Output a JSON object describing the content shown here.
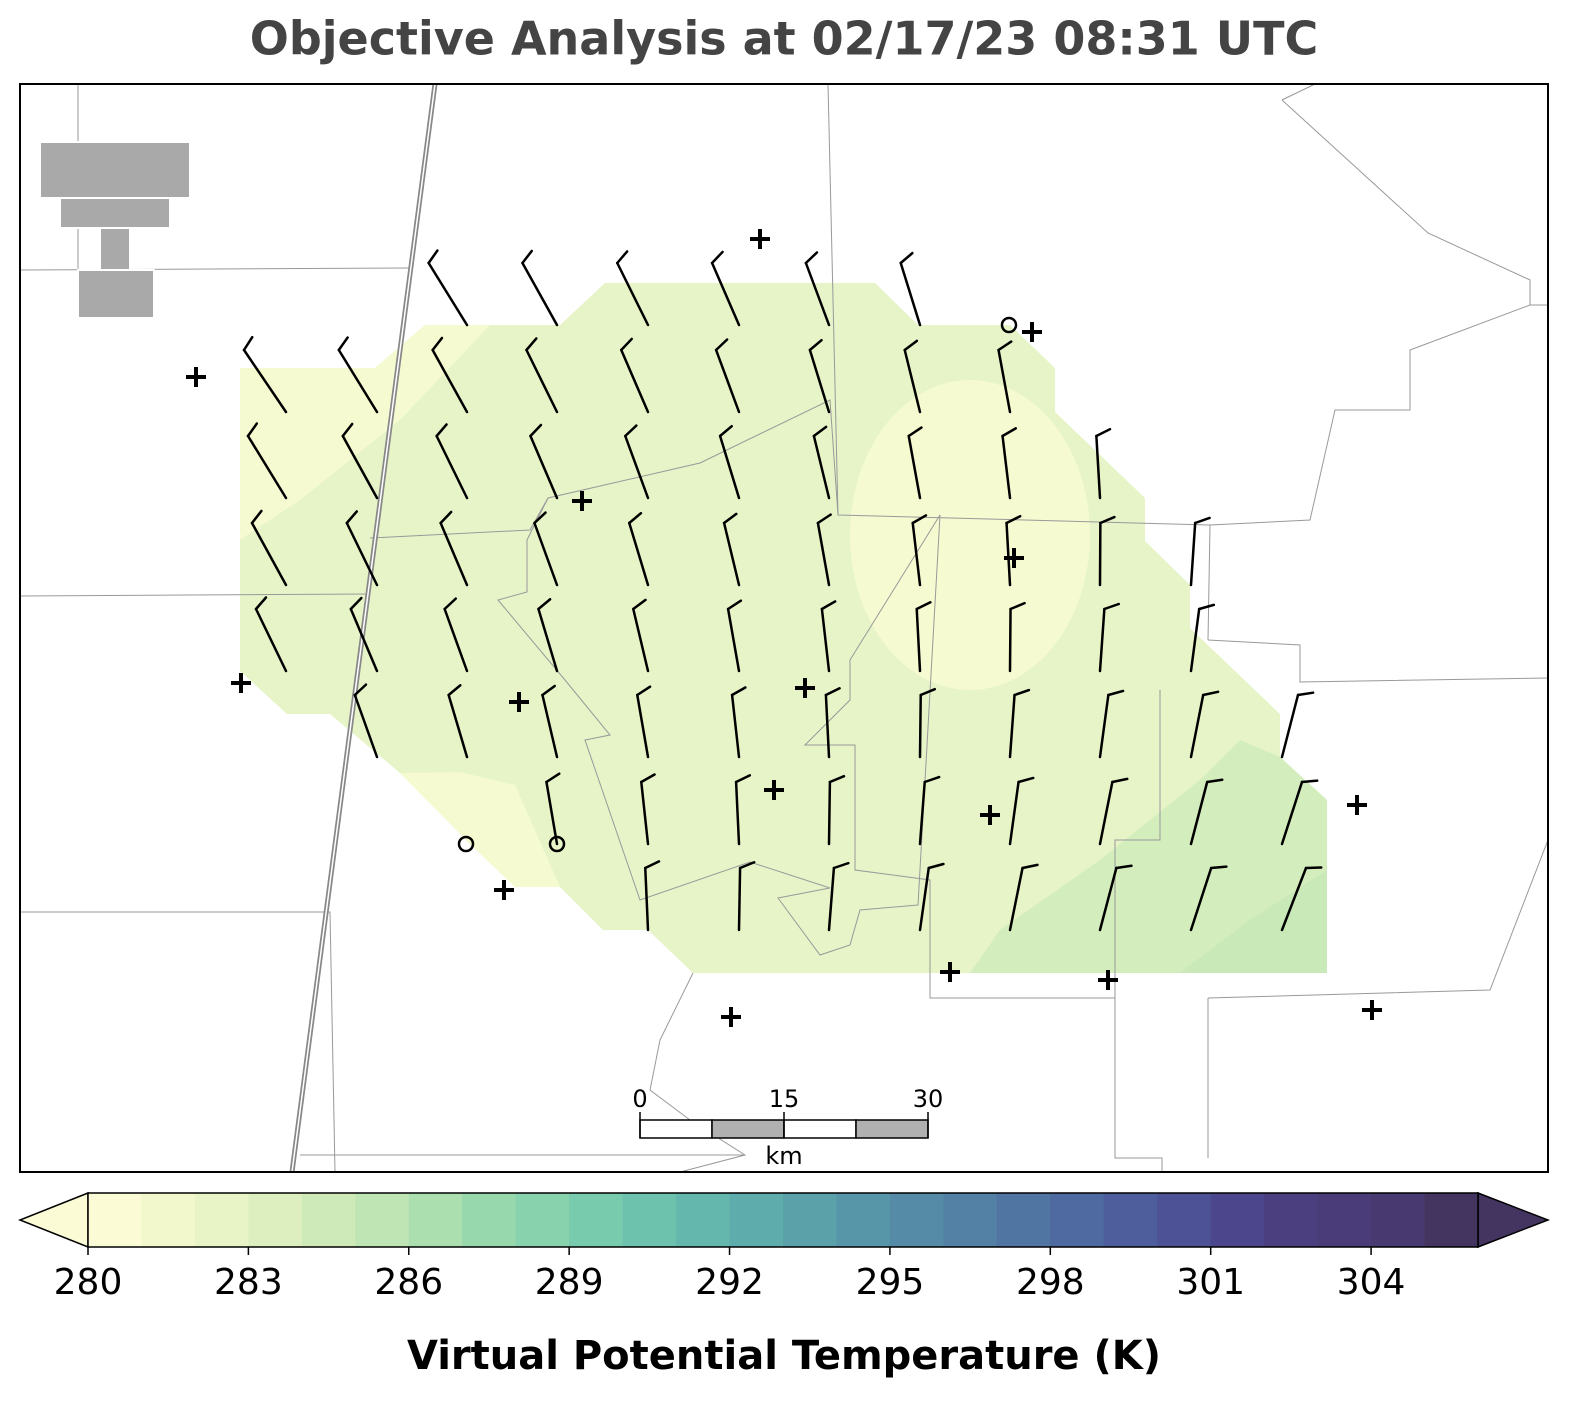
{
  "title": "Objective Analysis at 02/17/23 08:31 UTC",
  "scale_bar": {
    "ticks": [
      0,
      15,
      30
    ],
    "unit": "km"
  },
  "colorbar": {
    "label": "Virtual Potential Temperature (K)",
    "range": [
      280,
      306
    ],
    "ticks": [
      280,
      283,
      286,
      289,
      292,
      295,
      298,
      301,
      304
    ],
    "colors": [
      "#fbfbd6",
      "#f3f8cc",
      "#e9f4c6",
      "#ddefbf",
      "#cfeab9",
      "#bfe5b4",
      "#acdfb0",
      "#98d8ad",
      "#88d2ad",
      "#79cbad",
      "#6dc2ad",
      "#64b7ac",
      "#5eacab",
      "#5aa1aa",
      "#5796a9",
      "#558ba7",
      "#5380a5",
      "#5175a3",
      "#4f69a1",
      "#4e5d9c",
      "#4d5196",
      "#4c478c",
      "#4b3f7f",
      "#4a3c78",
      "#483a70",
      "#443560"
    ]
  }
}
